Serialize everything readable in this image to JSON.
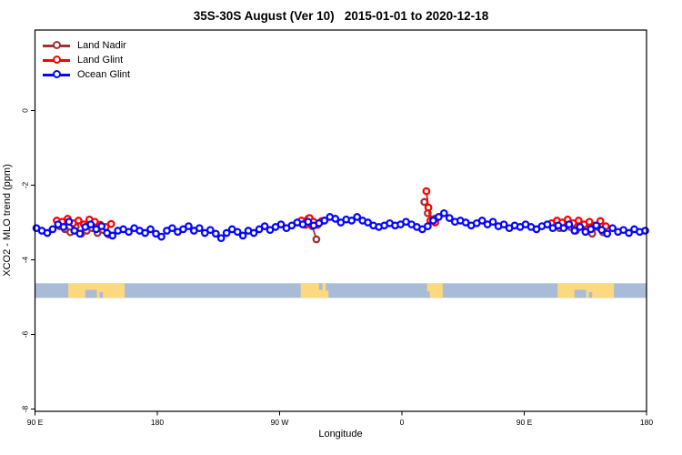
{
  "title": "35S-30S August (Ver 10)   2015-01-01 to 2020-12-18",
  "chart_data": {
    "type": "scatter",
    "title": "35S-30S August (Ver 10)   2015-01-01 to 2020-12-18",
    "xlabel": "Longitude",
    "ylabel": "XCO2 - MLO trend (ppm)",
    "grid": false,
    "legend_position": "top-left",
    "x_axis": {
      "min": 90,
      "max": 540,
      "ticks": [
        90,
        180,
        270,
        360,
        450,
        540
      ],
      "tick_labels": [
        "90 E",
        "180",
        "90 W",
        "0",
        "90 E",
        "180"
      ],
      "note": "longitude axis wraps eastward from 90E through 180, 90W, 0, 90E to 180"
    },
    "y_axis": {
      "min": -8,
      "max": 0,
      "ticks": [
        0,
        -2,
        -4,
        -6,
        -8
      ],
      "tick_labels": [
        "0",
        "-2",
        "-4",
        "-6",
        "-8"
      ]
    },
    "legend": [
      {
        "name": "Land Nadir",
        "color": "#a03232"
      },
      {
        "name": "Land Glint",
        "color": "#ff0000"
      },
      {
        "name": "Ocean Glint",
        "color": "#0606ff"
      }
    ],
    "series": [
      {
        "name": "Land Nadir",
        "color": "#a03232",
        "clusters": [
          [
            [
              108,
              -3.1
            ],
            [
              112,
              -3.18
            ],
            [
              116,
              -3.26
            ],
            [
              120,
              -3.12
            ],
            [
              124,
              -3.3
            ],
            [
              128,
              -3.22
            ],
            [
              132,
              -3.15
            ],
            [
              136,
              -3.28
            ],
            [
              140,
              -3.2
            ],
            [
              144,
              -3.32
            ]
          ],
          [
            [
              288,
              -2.98
            ],
            [
              291,
              -2.9
            ],
            [
              294,
              -3.1
            ],
            [
              297,
              -3.45
            ]
          ],
          [
            [
              376.5,
              -2.45
            ],
            [
              379,
              -2.75
            ],
            [
              384,
              -2.9
            ]
          ],
          [
            [
              472,
              -3.05
            ],
            [
              476,
              -3.15
            ],
            [
              480,
              -3.0
            ],
            [
              484,
              -3.12
            ],
            [
              488,
              -3.22
            ],
            [
              492,
              -3.1
            ],
            [
              496,
              -3.18
            ],
            [
              500,
              -3.3
            ],
            [
              504,
              -3.12
            ],
            [
              508,
              -3.26
            ]
          ]
        ]
      },
      {
        "name": "Land Glint",
        "color": "#ff0000",
        "clusters": [
          [
            [
              106,
              -2.95
            ],
            [
              110,
              -2.98
            ],
            [
              114,
              -2.9
            ],
            [
              118,
              -3.02
            ],
            [
              122,
              -2.95
            ],
            [
              126,
              -3.05
            ],
            [
              130,
              -2.92
            ],
            [
              134,
              -2.98
            ],
            [
              138,
              -3.06
            ],
            [
              142,
              -3.12
            ],
            [
              146,
              -3.04
            ]
          ],
          [
            [
              286,
              -2.95
            ],
            [
              289,
              -3.06
            ],
            [
              292,
              -2.88
            ],
            [
              295,
              -2.98
            ],
            [
              298,
              -3.06
            ],
            [
              301,
              -2.96
            ]
          ],
          [
            [
              378,
              -2.16
            ],
            [
              379.5,
              -2.6
            ],
            [
              381,
              -2.95
            ],
            [
              384.5,
              -3.0
            ]
          ],
          [
            [
              470,
              -3.02
            ],
            [
              474,
              -2.95
            ],
            [
              478,
              -3.0
            ],
            [
              482,
              -2.92
            ],
            [
              486,
              -3.02
            ],
            [
              490,
              -2.95
            ],
            [
              494,
              -3.05
            ],
            [
              498,
              -2.98
            ],
            [
              502,
              -3.08
            ],
            [
              506,
              -2.96
            ],
            [
              510,
              -3.1
            ]
          ]
        ]
      },
      {
        "name": "Ocean Glint",
        "color": "#0606ff",
        "clusters": [
          [
            [
              91,
              -3.15
            ],
            [
              95,
              -3.22
            ],
            [
              99,
              -3.28
            ],
            [
              103,
              -3.18
            ],
            [
              107,
              -3.05
            ],
            [
              111,
              -3.12
            ],
            [
              115,
              -2.98
            ],
            [
              119,
              -3.22
            ],
            [
              123,
              -3.3
            ],
            [
              127,
              -3.12
            ],
            [
              131,
              -3.05
            ],
            [
              135,
              -3.18
            ],
            [
              139,
              -3.1
            ],
            [
              143,
              -3.28
            ],
            [
              147,
              -3.35
            ],
            [
              151,
              -3.22
            ],
            [
              155,
              -3.18
            ],
            [
              159,
              -3.25
            ],
            [
              163,
              -3.15
            ],
            [
              167,
              -3.22
            ],
            [
              171,
              -3.28
            ],
            [
              175,
              -3.18
            ],
            [
              179,
              -3.3
            ],
            [
              183,
              -3.38
            ],
            [
              187,
              -3.22
            ],
            [
              191,
              -3.15
            ],
            [
              195,
              -3.25
            ],
            [
              199,
              -3.18
            ],
            [
              203,
              -3.1
            ],
            [
              207,
              -3.22
            ],
            [
              211,
              -3.15
            ],
            [
              215,
              -3.28
            ],
            [
              219,
              -3.2
            ],
            [
              223,
              -3.3
            ],
            [
              227,
              -3.42
            ],
            [
              231,
              -3.28
            ],
            [
              235,
              -3.18
            ],
            [
              239,
              -3.25
            ],
            [
              243,
              -3.35
            ],
            [
              247,
              -3.22
            ],
            [
              251,
              -3.28
            ],
            [
              255,
              -3.18
            ],
            [
              259,
              -3.1
            ],
            [
              263,
              -3.2
            ],
            [
              267,
              -3.12
            ],
            [
              271,
              -3.05
            ],
            [
              275,
              -3.15
            ],
            [
              279,
              -3.08
            ],
            [
              283,
              -3.0
            ],
            [
              287,
              -3.05
            ],
            [
              291,
              -2.98
            ],
            [
              295,
              -3.08
            ],
            [
              299,
              -3.02
            ],
            [
              303,
              -2.95
            ],
            [
              307,
              -2.85
            ],
            [
              311,
              -2.9
            ],
            [
              315,
              -3.0
            ],
            [
              319,
              -2.92
            ],
            [
              323,
              -2.95
            ],
            [
              327,
              -2.85
            ],
            [
              331,
              -2.95
            ],
            [
              335,
              -3.0
            ],
            [
              339,
              -3.08
            ],
            [
              343,
              -3.12
            ],
            [
              347,
              -3.08
            ],
            [
              351,
              -3.02
            ],
            [
              355,
              -3.08
            ],
            [
              359,
              -3.05
            ],
            [
              363,
              -2.98
            ],
            [
              367,
              -3.05
            ],
            [
              371,
              -3.12
            ],
            [
              375,
              -3.18
            ],
            [
              379,
              -3.1
            ],
            [
              383,
              -2.95
            ],
            [
              387,
              -2.85
            ],
            [
              391,
              -2.75
            ],
            [
              395,
              -2.88
            ],
            [
              399,
              -2.98
            ],
            [
              403,
              -2.95
            ],
            [
              407,
              -3.0
            ],
            [
              411,
              -3.08
            ],
            [
              415,
              -3.02
            ],
            [
              419,
              -2.95
            ],
            [
              423,
              -3.05
            ],
            [
              427,
              -2.98
            ],
            [
              431,
              -3.1
            ],
            [
              435,
              -3.05
            ],
            [
              439,
              -3.15
            ],
            [
              443,
              -3.08
            ],
            [
              447,
              -3.12
            ],
            [
              451,
              -3.05
            ],
            [
              455,
              -3.12
            ],
            [
              459,
              -3.18
            ],
            [
              463,
              -3.1
            ],
            [
              467,
              -3.05
            ],
            [
              471,
              -3.15
            ],
            [
              475,
              -3.08
            ],
            [
              479,
              -3.15
            ],
            [
              483,
              -3.05
            ],
            [
              487,
              -3.22
            ],
            [
              491,
              -3.12
            ],
            [
              495,
              -3.25
            ],
            [
              499,
              -3.18
            ],
            [
              503,
              -3.08
            ],
            [
              507,
              -3.2
            ],
            [
              511,
              -3.3
            ],
            [
              515,
              -3.15
            ],
            [
              519,
              -3.25
            ],
            [
              523,
              -3.2
            ],
            [
              527,
              -3.28
            ],
            [
              531,
              -3.18
            ],
            [
              535,
              -3.25
            ],
            [
              539,
              -3.22
            ]
          ]
        ]
      }
    ],
    "map_strip": {
      "y_top": -4.63,
      "y_bottom": -5.02,
      "ocean_color": "#a8bcd8",
      "land_color": "#fcd87f",
      "land_patches": [
        {
          "x0": 114.5,
          "x1": 156,
          "notches": [
            {
              "x0": 127,
              "x1": 135.5,
              "frac": 0.55,
              "side": "bottom"
            },
            {
              "x0": 137.5,
              "x1": 140,
              "frac": 0.4,
              "side": "bottom"
            }
          ]
        },
        {
          "x0": 285.5,
          "x1": 306,
          "notches": [
            {
              "x0": 299,
              "x1": 301.5,
              "frac": 0.45,
              "side": "top"
            },
            {
              "x0": 304,
              "x1": 306,
              "frac": 0.5,
              "side": "top"
            }
          ]
        },
        {
          "x0": 378.5,
          "x1": 390,
          "notches": [
            {
              "x0": 378.5,
              "x1": 380.5,
              "frac": 0.45,
              "side": "bottom"
            }
          ]
        },
        {
          "x0": 474.5,
          "x1": 516,
          "notches": [
            {
              "x0": 487,
              "x1": 495.5,
              "frac": 0.55,
              "side": "bottom"
            },
            {
              "x0": 497.5,
              "x1": 500,
              "frac": 0.4,
              "side": "bottom"
            }
          ]
        }
      ]
    }
  }
}
